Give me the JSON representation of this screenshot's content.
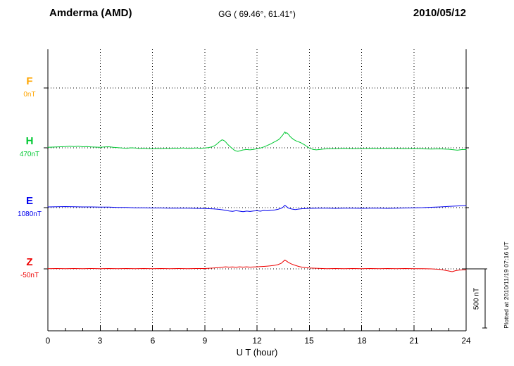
{
  "header": {
    "station": "Amderma (AMD)",
    "coords": "GG ( 69.46°,  61.41°)",
    "date": "2010/05/12"
  },
  "axis": {
    "x_ticks": [
      "0",
      "3",
      "6",
      "9",
      "12",
      "15",
      "18",
      "21",
      "24"
    ],
    "x_label": "U T (hour)"
  },
  "scale_bar": {
    "label": "500 nT"
  },
  "footer_note": "Plotted at 2010/11/19 07:16 UT",
  "components": [
    {
      "id": "F",
      "label": "F",
      "baseline_label": "0nT",
      "color": "#ffa500"
    },
    {
      "id": "H",
      "label": "H",
      "baseline_label": "470nT",
      "color": "#00c832"
    },
    {
      "id": "E",
      "label": "E",
      "baseline_label": "1080nT",
      "color": "#0000ee"
    },
    {
      "id": "Z",
      "label": "Z",
      "baseline_label": "-50nT",
      "color": "#ee0000"
    }
  ],
  "chart_data": {
    "type": "line",
    "title": "Amderma (AMD) magnetogram",
    "subtitle": "GG ( 69.46°,  61.41°)",
    "date": "2010/05/12",
    "xlabel": "U T (hour)",
    "xlim": [
      0,
      24
    ],
    "x_tick_step_hours": 3,
    "grid": "dotted",
    "scale_nT_per_division": 500,
    "series": [
      {
        "name": "F",
        "baseline_nT": 0,
        "color": "#ffa500",
        "points": []
      },
      {
        "name": "H",
        "baseline_nT": 470,
        "color": "#00c832",
        "points": [
          [
            0,
            4
          ],
          [
            0.25,
            6
          ],
          [
            0.5,
            7
          ],
          [
            0.75,
            9
          ],
          [
            1,
            10
          ],
          [
            1.25,
            13
          ],
          [
            1.5,
            10
          ],
          [
            1.75,
            13
          ],
          [
            2,
            9
          ],
          [
            2.25,
            11
          ],
          [
            2.5,
            7
          ],
          [
            2.75,
            6
          ],
          [
            3,
            5
          ],
          [
            3.25,
            8
          ],
          [
            3.5,
            9
          ],
          [
            3.75,
            4
          ],
          [
            4,
            2
          ],
          [
            4.25,
            -2
          ],
          [
            4.5,
            -4
          ],
          [
            4.75,
            0
          ],
          [
            5,
            -2
          ],
          [
            5.25,
            -6
          ],
          [
            5.5,
            -4
          ],
          [
            5.75,
            -7
          ],
          [
            6,
            -9
          ],
          [
            6.25,
            -6
          ],
          [
            6.5,
            -8
          ],
          [
            6.75,
            -4
          ],
          [
            7,
            -6
          ],
          [
            7.25,
            -3
          ],
          [
            7.5,
            -5
          ],
          [
            7.75,
            -2
          ],
          [
            8,
            -5
          ],
          [
            8.25,
            -4
          ],
          [
            8.5,
            -2
          ],
          [
            8.75,
            -4
          ],
          [
            9,
            -1
          ],
          [
            9.2,
            2
          ],
          [
            9.4,
            7
          ],
          [
            9.6,
            20
          ],
          [
            9.8,
            45
          ],
          [
            9.9,
            58
          ],
          [
            10,
            68
          ],
          [
            10.1,
            62
          ],
          [
            10.2,
            50
          ],
          [
            10.3,
            32
          ],
          [
            10.4,
            18
          ],
          [
            10.5,
            5
          ],
          [
            10.6,
            -8
          ],
          [
            10.7,
            -20
          ],
          [
            10.8,
            -27
          ],
          [
            10.9,
            -30
          ],
          [
            11,
            -26
          ],
          [
            11.2,
            -18
          ],
          [
            11.4,
            -14
          ],
          [
            11.6,
            -17
          ],
          [
            11.8,
            -13
          ],
          [
            12,
            -8
          ],
          [
            12.2,
            -2
          ],
          [
            12.4,
            8
          ],
          [
            12.6,
            20
          ],
          [
            12.8,
            34
          ],
          [
            13,
            50
          ],
          [
            13.1,
            58
          ],
          [
            13.2,
            66
          ],
          [
            13.3,
            76
          ],
          [
            13.4,
            95
          ],
          [
            13.5,
            112
          ],
          [
            13.55,
            125
          ],
          [
            13.6,
            135
          ],
          [
            13.65,
            122
          ],
          [
            13.7,
            128
          ],
          [
            13.8,
            115
          ],
          [
            13.9,
            96
          ],
          [
            14,
            82
          ],
          [
            14.1,
            70
          ],
          [
            14.2,
            62
          ],
          [
            14.3,
            55
          ],
          [
            14.4,
            50
          ],
          [
            14.5,
            44
          ],
          [
            14.6,
            36
          ],
          [
            14.7,
            28
          ],
          [
            14.8,
            18
          ],
          [
            14.9,
            8
          ],
          [
            15,
            -2
          ],
          [
            15.2,
            -13
          ],
          [
            15.4,
            -17
          ],
          [
            15.6,
            -14
          ],
          [
            15.8,
            -11
          ],
          [
            16,
            -9
          ],
          [
            16.5,
            -7
          ],
          [
            17,
            -5
          ],
          [
            17.5,
            -8
          ],
          [
            18,
            -6
          ],
          [
            18.5,
            -4
          ],
          [
            19,
            -6
          ],
          [
            19.5,
            -4
          ],
          [
            20,
            -6
          ],
          [
            20.5,
            -8
          ],
          [
            21,
            -6
          ],
          [
            21.5,
            -9
          ],
          [
            22,
            -11
          ],
          [
            22.5,
            -9
          ],
          [
            23,
            -12
          ],
          [
            23.5,
            -20
          ],
          [
            23.75,
            -15
          ],
          [
            24,
            -14
          ]
        ]
      },
      {
        "name": "E",
        "baseline_nT": 1080,
        "color": "#0000ee",
        "points": [
          [
            0,
            6
          ],
          [
            0.5,
            8
          ],
          [
            1,
            9
          ],
          [
            1.5,
            7
          ],
          [
            2,
            6
          ],
          [
            2.5,
            6
          ],
          [
            3,
            4
          ],
          [
            3.5,
            4
          ],
          [
            4,
            1
          ],
          [
            4.5,
            1
          ],
          [
            5,
            -2
          ],
          [
            5.5,
            -1
          ],
          [
            6,
            -3
          ],
          [
            6.5,
            -3
          ],
          [
            7,
            -5
          ],
          [
            7.5,
            -4
          ],
          [
            8,
            -5
          ],
          [
            8.5,
            -6
          ],
          [
            9,
            -8
          ],
          [
            9.5,
            -11
          ],
          [
            9.8,
            -14
          ],
          [
            10,
            -18
          ],
          [
            10.2,
            -23
          ],
          [
            10.4,
            -28
          ],
          [
            10.6,
            -31
          ],
          [
            10.8,
            -26
          ],
          [
            11,
            -30
          ],
          [
            11.2,
            -34
          ],
          [
            11.4,
            -29
          ],
          [
            11.6,
            -32
          ],
          [
            11.8,
            -28
          ],
          [
            12,
            -26
          ],
          [
            12.2,
            -30
          ],
          [
            12.4,
            -24
          ],
          [
            12.6,
            -27
          ],
          [
            12.8,
            -22
          ],
          [
            13,
            -20
          ],
          [
            13.2,
            -14
          ],
          [
            13.4,
            -5
          ],
          [
            13.5,
            5
          ],
          [
            13.6,
            20
          ],
          [
            13.7,
            8
          ],
          [
            13.8,
            -4
          ],
          [
            14,
            -12
          ],
          [
            14.2,
            -16
          ],
          [
            14.4,
            -12
          ],
          [
            14.6,
            -9
          ],
          [
            14.8,
            -7
          ],
          [
            15,
            -6
          ],
          [
            15.5,
            -4
          ],
          [
            16,
            -4
          ],
          [
            16.5,
            -6
          ],
          [
            17,
            -4
          ],
          [
            17.5,
            -4
          ],
          [
            18,
            -6
          ],
          [
            18.5,
            -4
          ],
          [
            19,
            -4
          ],
          [
            19.5,
            -6
          ],
          [
            20,
            -4
          ],
          [
            20.5,
            -3
          ],
          [
            21,
            -1
          ],
          [
            21.5,
            0
          ],
          [
            22,
            3
          ],
          [
            22.5,
            6
          ],
          [
            23,
            10
          ],
          [
            23.5,
            14
          ],
          [
            24,
            18
          ]
        ]
      },
      {
        "name": "Z",
        "baseline_nT": -50,
        "color": "#ee0000",
        "points": [
          [
            0,
            2
          ],
          [
            0.5,
            3
          ],
          [
            1,
            2
          ],
          [
            1.5,
            3
          ],
          [
            2,
            2
          ],
          [
            2.5,
            3
          ],
          [
            3,
            2
          ],
          [
            3.5,
            3
          ],
          [
            4,
            2
          ],
          [
            4.5,
            3
          ],
          [
            5,
            2
          ],
          [
            5.5,
            3
          ],
          [
            6,
            2
          ],
          [
            6.5,
            3
          ],
          [
            7,
            2
          ],
          [
            7.5,
            3
          ],
          [
            8,
            2
          ],
          [
            8.5,
            3
          ],
          [
            9,
            3
          ],
          [
            9.5,
            7
          ],
          [
            9.8,
            11
          ],
          [
            10,
            14
          ],
          [
            10.2,
            17
          ],
          [
            10.4,
            15
          ],
          [
            10.6,
            16
          ],
          [
            10.8,
            14
          ],
          [
            11,
            17
          ],
          [
            11.2,
            15
          ],
          [
            11.4,
            17
          ],
          [
            11.6,
            15
          ],
          [
            11.8,
            16
          ],
          [
            12,
            17
          ],
          [
            12.2,
            19
          ],
          [
            12.4,
            21
          ],
          [
            12.6,
            23
          ],
          [
            12.8,
            26
          ],
          [
            13,
            30
          ],
          [
            13.2,
            36
          ],
          [
            13.4,
            48
          ],
          [
            13.5,
            62
          ],
          [
            13.6,
            75
          ],
          [
            13.7,
            65
          ],
          [
            13.8,
            55
          ],
          [
            13.9,
            47
          ],
          [
            14,
            40
          ],
          [
            14.2,
            30
          ],
          [
            14.4,
            20
          ],
          [
            14.6,
            14
          ],
          [
            14.8,
            10
          ],
          [
            15,
            8
          ],
          [
            15.5,
            4
          ],
          [
            16,
            2
          ],
          [
            16.5,
            3
          ],
          [
            17,
            2
          ],
          [
            17.5,
            3
          ],
          [
            18,
            2
          ],
          [
            18.5,
            3
          ],
          [
            19,
            2
          ],
          [
            19.5,
            3
          ],
          [
            20,
            2
          ],
          [
            20.5,
            3
          ],
          [
            21,
            2
          ],
          [
            21.5,
            1
          ],
          [
            22,
            0
          ],
          [
            22.5,
            -4
          ],
          [
            23,
            -18
          ],
          [
            23.2,
            -24
          ],
          [
            23.4,
            -15
          ],
          [
            23.6,
            -10
          ],
          [
            24,
            -8
          ]
        ]
      }
    ]
  }
}
